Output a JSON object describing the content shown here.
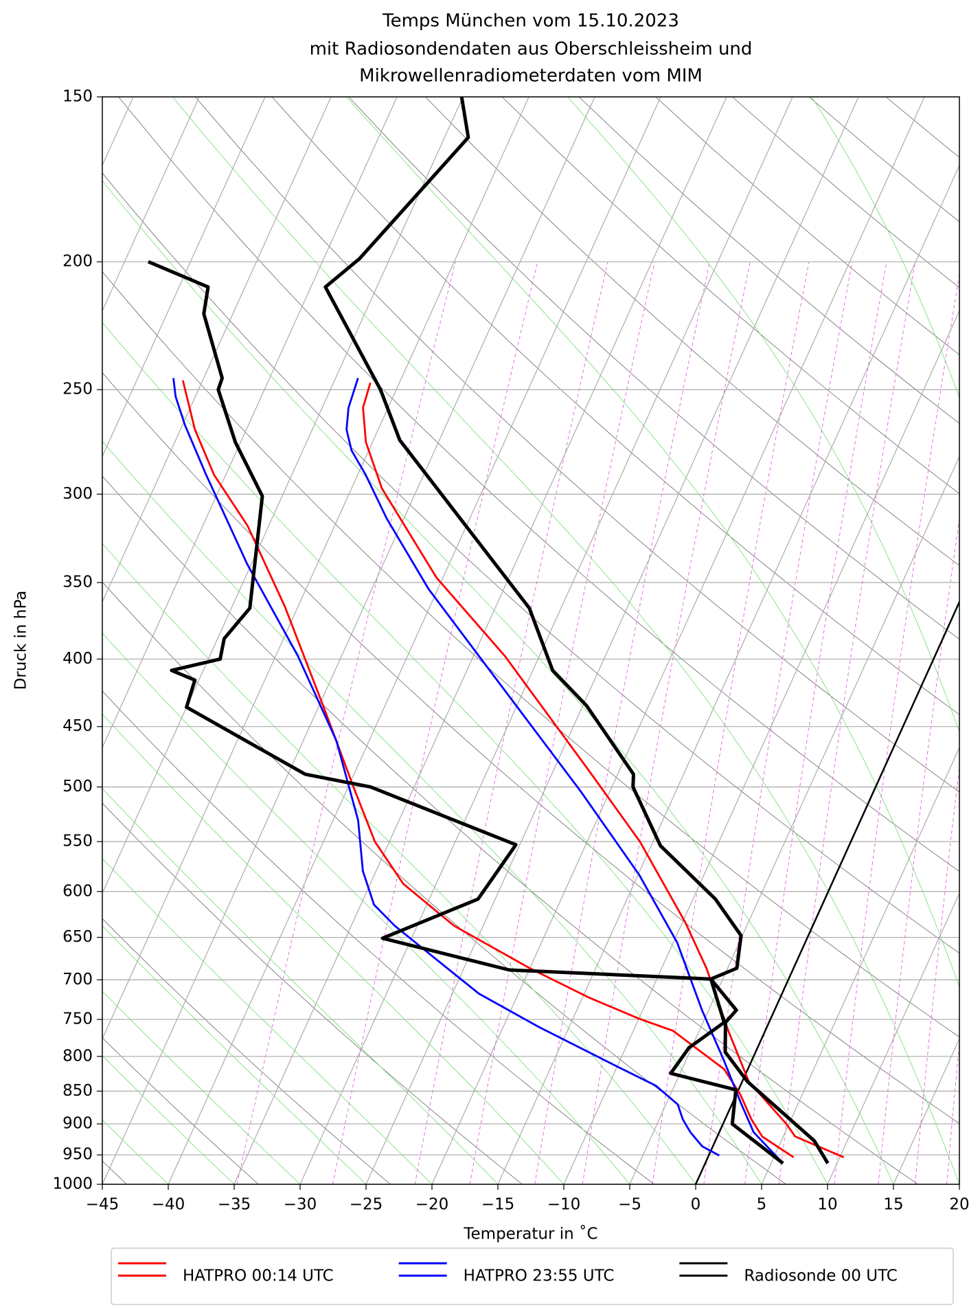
{
  "chart_data": {
    "type": "skewt",
    "title": [
      "Temps München vom 15.10.2023",
      "mit Radiosondendaten aus Oberschleissheim und",
      "Mikrowellenradiometerdaten vom MIM"
    ],
    "xlabel": "Temperatur in ˚C",
    "ylabel": "Druck in hPa",
    "xlim": [
      -45,
      20
    ],
    "ylim": [
      1000,
      150
    ],
    "yscale": "log",
    "grid": true,
    "legend": "below",
    "xticks": [
      {
        "value": -45,
        "label": "−45"
      },
      {
        "value": -40,
        "label": "−40"
      },
      {
        "value": -35,
        "label": "−35"
      },
      {
        "value": -30,
        "label": "−30"
      },
      {
        "value": -25,
        "label": "−25"
      },
      {
        "value": -20,
        "label": "−20"
      },
      {
        "value": -15,
        "label": "−15"
      },
      {
        "value": -10,
        "label": "−10"
      },
      {
        "value": -5,
        "label": "−5"
      },
      0,
      5,
      10,
      15,
      20
    ],
    "yticks": [
      150,
      200,
      250,
      300,
      350,
      400,
      450,
      500,
      550,
      600,
      650,
      700,
      750,
      800,
      850,
      900,
      950,
      1000
    ],
    "zero_isotherm": 0,
    "series": [
      {
        "name": "HATPRO 00:14 UTC",
        "color": "#ff0000",
        "curves": [
          {
            "x": [
              10.3,
              5.9,
              4.8,
              0.5,
              -2.8,
              -6.6,
              -9.8,
              -16.0,
              -22.3,
              -32.6,
              -40.5,
              -47.7,
              -50.5,
              -51.9,
              -52.2
            ],
            "y": [
              954,
              920,
              900,
              836,
              765,
              686,
              633,
              550,
              486,
              398,
              347,
              297,
              274,
              258,
              247
            ]
          },
          {
            "x": [
              6.5,
              3.4,
              2.0,
              0.3,
              -1.8,
              -7.0,
              -10.0,
              -14.5,
              -20.0,
              -27.2,
              -32.5,
              -36.1,
              -39.6,
              -44.6,
              -51.0,
              -56.6,
              -60.9,
              -63.9,
              -66.5
            ],
            "y": [
              954,
              920,
              893,
              855,
              818,
              765,
              749,
              722,
              686,
              637,
              592,
              550,
              500,
              435,
              365,
              317,
              290,
              268,
              246
            ]
          }
        ]
      },
      {
        "name": "HATPRO 23:55 UTC",
        "color": "#0000ff",
        "curves": [
          {
            "x": [
              5.9,
              2.6,
              0.6,
              -2.1,
              -5.5,
              -9.7,
              -14.9,
              -22.2,
              -31.5,
              -40.7,
              -46.3,
              -49.4,
              -51.3,
              -52.4,
              -53.0,
              -53.3
            ],
            "y": [
              964,
              913,
              867,
              806,
              738,
              656,
              583,
              504,
              422,
              354,
              313,
              290,
              278,
              268,
              258,
              245
            ]
          },
          {
            "x": [
              0.8,
              -0.8,
              -2.2,
              -3.2,
              -4.1,
              -6.4,
              -10.3,
              -17.3,
              -23.0,
              -26.8,
              -31.7,
              -34.0,
              -36.0,
              -38.1,
              -42.5,
              -48.3,
              -55.3,
              -61.5,
              -64.8,
              -66.5,
              -67.3
            ],
            "y": [
              951,
              936,
              913,
              893,
              870,
              842,
              812,
              760,
              717,
              681,
              637,
              614,
              579,
              530,
              461,
              398,
              339,
              290,
              266,
              253,
              245
            ]
          }
        ]
      },
      {
        "name": "Radiosonde 00 UTC",
        "color": "#000000",
        "curves": [
          {
            "x": [
              9.3,
              7.5,
              0.4,
              -2.3,
              -3.3,
              -2.9,
              -5.9,
              -4.3,
              -5.1,
              -8.3,
              -14.3,
              -18.4,
              -18.8,
              -24.7,
              -28.5,
              -32.4,
              -48.0,
              -51.2,
              -58.9,
              -57.3,
              -53.2,
              -55.1
            ],
            "y": [
              964,
              927,
              836,
              794,
              754,
              738,
              699,
              686,
              648,
              608,
              554,
              500,
              489,
              434,
              408,
              366,
              273,
              250,
              209,
              199,
              161,
              150
            ]
          },
          {
            "x": [
              5.9,
              0.7,
              -0.2,
              -5.7,
              -5.2,
              -3.4,
              -5.9,
              -21.5,
              -32.2,
              -26.3,
              -25.3,
              -38.3,
              -43.7,
              -55.0,
              -55.3,
              -57.4,
              -54.1,
              -54.5,
              -53.6,
              -56.5,
              -60.4,
              -63.5,
              -63.6,
              -67.2,
              -67.8,
              -73.2
            ],
            "y": [
              964,
              900,
              848,
              824,
              788,
              754,
              699,
              688,
              651,
              608,
              553,
              500,
              489,
              435,
              415,
              408,
              400,
              386,
              366,
              301,
              274,
              250,
              245,
              219,
              209,
              200
            ]
          }
        ]
      }
    ]
  }
}
